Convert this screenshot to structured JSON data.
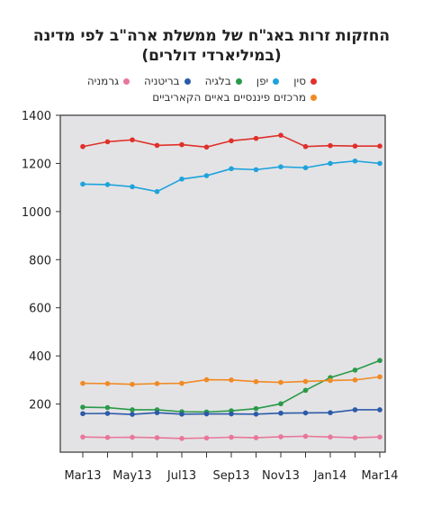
{
  "title_line1": "החזקות זרות באג\"ח של ממשלת ארה\"ב לפי מדינה",
  "title_line2": "(במיליארדי דולרים)",
  "chart_data": {
    "type": "line",
    "title": "החזקות זרות באג\"ח של ממשלת ארה\"ב לפי מדינה (במיליארדי דולרים)",
    "x": [
      "Mar13",
      "Apr13",
      "May13",
      "Jun13",
      "Jul13",
      "Aug13",
      "Sep13",
      "Oct13",
      "Nov13",
      "Dec13",
      "Jan14",
      "Feb14",
      "Mar14"
    ],
    "xticks": [
      "Mar13",
      "May13",
      "Jul13",
      "Sep13",
      "Nov13",
      "Jan14",
      "Mar14"
    ],
    "ylim": [
      0,
      1400
    ],
    "yticks": [
      200,
      400,
      600,
      800,
      1000,
      1200,
      1400
    ],
    "grid": false,
    "legend_position": "top",
    "series": [
      {
        "name": "סין",
        "color": "#e0302a",
        "values": [
          1270,
          1290,
          1298,
          1275,
          1278,
          1268,
          1294,
          1304,
          1317,
          1270,
          1274,
          1272,
          1272
        ]
      },
      {
        "name": "יפן",
        "color": "#1ea3dc",
        "values": [
          1114,
          1112,
          1103,
          1083,
          1135,
          1149,
          1178,
          1174,
          1186,
          1182,
          1200,
          1210,
          1200
        ]
      },
      {
        "name": "בלגיה",
        "color": "#2a9a48",
        "values": [
          187,
          185,
          176,
          176,
          168,
          167,
          172,
          181,
          201,
          257,
          310,
          341,
          381
        ]
      },
      {
        "name": "בריטניה",
        "color": "#2c5aa8",
        "values": [
          160,
          161,
          157,
          164,
          158,
          159,
          159,
          158,
          162,
          163,
          164,
          176,
          176
        ]
      },
      {
        "name": "גרמניה",
        "color": "#e8779a",
        "values": [
          63,
          61,
          62,
          60,
          57,
          59,
          62,
          60,
          64,
          66,
          63,
          60,
          63
        ]
      },
      {
        "name": "מרכזים פיננסיים באיים הקאריביים",
        "color": "#f08a25",
        "values": [
          286,
          285,
          282,
          285,
          286,
          301,
          300,
          293,
          290,
          294,
          298,
          300,
          313
        ]
      }
    ]
  }
}
